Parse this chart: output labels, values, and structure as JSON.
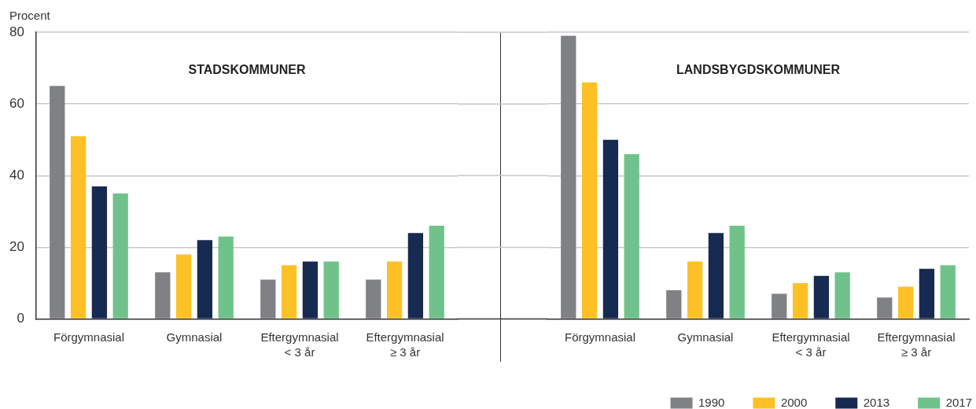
{
  "chart_data": [
    {
      "type": "bar",
      "title": "STADSKOMMUNER",
      "ylabel": "Procent",
      "categories": [
        "Förgymnasial",
        "Gymnasial",
        "Eftergymnasial < 3 år",
        "Eftergymnasial ≥ 3 år"
      ],
      "series": [
        {
          "color": "#808184",
          "values": [
            65,
            13,
            11,
            11
          ]
        },
        {
          "color": "#fdc126",
          "values": [
            51,
            18,
            15,
            16
          ]
        },
        {
          "color": "#172a51",
          "values": [
            37,
            22,
            16,
            24
          ]
        },
        {
          "color": "#6fc38a",
          "values": [
            35,
            23,
            16,
            26
          ]
        }
      ],
      "ylim": [
        0,
        80
      ],
      "yticks": [
        0,
        20,
        40,
        60,
        80
      ],
      "grid": "y"
    },
    {
      "type": "bar",
      "title": "LANDSBYGDSKOMMUNER",
      "categories": [
        "Förgymnasial",
        "Gymnasial",
        "Eftergymnasial < 3 år",
        "Eftergymnasial ≥ 3 år"
      ],
      "series": [
        {
          "name": "1990",
          "color": "#808184",
          "values": [
            79,
            8,
            7,
            6
          ]
        },
        {
          "name": "2000",
          "color": "#fdc126",
          "values": [
            66,
            16,
            10,
            9
          ]
        },
        {
          "name": "2013",
          "color": "#172a51",
          "values": [
            50,
            24,
            12,
            14
          ]
        },
        {
          "name": "2017",
          "color": "#6fc38a",
          "values": [
            46,
            26,
            13,
            15
          ]
        }
      ],
      "ylim": [
        0,
        80
      ],
      "yticks": [
        0,
        20,
        40,
        60,
        80
      ],
      "grid": "y",
      "legend": "bottom right",
      "tick_labels": "x"
    }
  ]
}
